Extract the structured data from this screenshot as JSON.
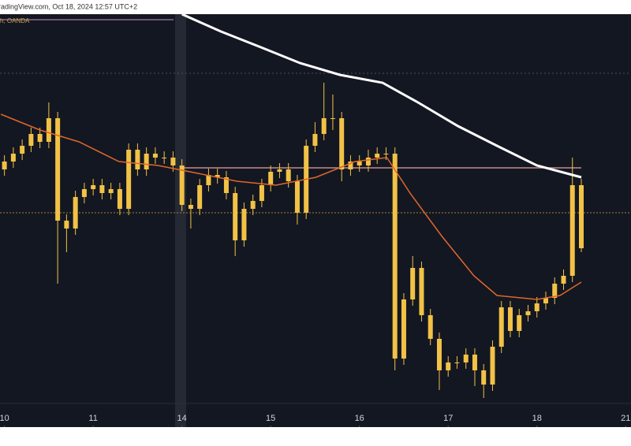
{
  "chart_data": {
    "type": "candlestick",
    "header": "radingView.com, Oct 18, 2024 12:57 UTC+2",
    "symbol": "h, OANDA",
    "xlim": [
      -0.05,
      7.06
    ],
    "ylim": [
      0,
      522
    ],
    "xticks": [
      {
        "value": 0,
        "label": "10"
      },
      {
        "value": 1,
        "label": "11"
      },
      {
        "value": 2,
        "label": "14"
      },
      {
        "value": 3,
        "label": "15"
      },
      {
        "value": 4,
        "label": "16"
      },
      {
        "value": 5,
        "label": "17"
      },
      {
        "value": 6,
        "label": "18"
      },
      {
        "value": 7,
        "label": "21"
      }
    ],
    "candle_color": "#f2c246",
    "x": [
      0,
      0.1,
      0.2,
      0.3,
      0.4,
      0.5,
      0.6,
      0.7,
      0.8,
      0.9,
      1,
      1.1,
      1.2,
      1.3,
      1.4,
      1.5,
      1.6,
      1.7,
      1.8,
      1.9,
      2,
      2.1,
      2.2,
      2.3,
      2.4,
      2.5,
      2.6,
      2.7,
      2.8,
      2.9,
      3,
      3.1,
      3.2,
      3.3,
      3.4,
      3.5,
      3.6,
      3.7,
      3.8,
      3.9,
      4,
      4.1,
      4.2,
      4.3,
      4.4,
      4.5,
      4.6,
      4.7,
      4.8,
      4.9,
      5,
      5.1,
      5.2,
      5.3,
      5.4,
      5.5,
      5.6,
      5.7,
      5.8,
      5.9,
      6,
      6.1,
      6.2,
      6.3,
      6.4,
      6.5
    ],
    "open": [
      325,
      335,
      345,
      355,
      370,
      360,
      390,
      260,
      250,
      290,
      300,
      305,
      295,
      300,
      275,
      350,
      325,
      345,
      340,
      340,
      330,
      280,
      275,
      305,
      318,
      315,
      295,
      235,
      275,
      285,
      305,
      322,
      325,
      310,
      270,
      355,
      370,
      390,
      390,
      325,
      335,
      330,
      340,
      345,
      345,
      85,
      160,
      200,
      140,
      110,
      70,
      80,
      80,
      90,
      70,
      52,
      100,
      150,
      120,
      140,
      145,
      155,
      162,
      180,
      190,
      305
    ],
    "high": [
      343,
      353,
      363,
      378,
      378,
      410,
      398,
      268,
      298,
      308,
      313,
      313,
      308,
      308,
      358,
      358,
      353,
      353,
      348,
      348,
      338,
      288,
      313,
      326,
      326,
      323,
      303,
      283,
      293,
      313,
      330,
      333,
      333,
      318,
      363,
      385,
      435,
      420,
      398,
      343,
      343,
      350,
      353,
      353,
      353,
      168,
      215,
      208,
      148,
      118,
      88,
      88,
      98,
      98,
      78,
      108,
      158,
      158,
      148,
      153,
      163,
      170,
      188,
      198,
      340,
      313
    ],
    "low": [
      317,
      327,
      337,
      347,
      352,
      352,
      180,
      220,
      242,
      282,
      292,
      287,
      287,
      267,
      267,
      317,
      317,
      332,
      332,
      322,
      272,
      250,
      267,
      297,
      307,
      287,
      215,
      227,
      267,
      277,
      297,
      314,
      302,
      255,
      262,
      347,
      362,
      375,
      310,
      317,
      322,
      322,
      332,
      337,
      70,
      77,
      152,
      132,
      102,
      45,
      62,
      72,
      72,
      50,
      35,
      44,
      92,
      112,
      112,
      132,
      137,
      147,
      154,
      172,
      182,
      220
    ],
    "close": [
      335,
      345,
      355,
      370,
      360,
      390,
      260,
      250,
      290,
      300,
      305,
      295,
      300,
      275,
      350,
      325,
      345,
      340,
      340,
      330,
      280,
      275,
      305,
      318,
      315,
      295,
      235,
      275,
      285,
      305,
      322,
      325,
      310,
      270,
      355,
      370,
      390,
      390,
      325,
      335,
      330,
      340,
      345,
      345,
      85,
      160,
      200,
      140,
      110,
      70,
      80,
      80,
      90,
      70,
      52,
      100,
      150,
      120,
      140,
      145,
      155,
      162,
      180,
      190,
      305,
      225
    ],
    "lines": [
      {
        "color": "#ffffff",
        "x": [
          2.0,
          2.44,
          2.89,
          3.33,
          3.78,
          4.26,
          4.66,
          5.11,
          5.55,
          6.0,
          6.5
        ],
        "values": [
          522,
          500,
          480,
          460,
          445,
          435,
          410,
          380,
          355,
          330,
          315
        ]
      },
      {
        "color": "#e0672a",
        "x": [
          -0.04,
          0.4,
          0.84,
          1.29,
          1.73,
          2.18,
          2.62,
          3.06,
          3.51,
          3.95,
          4.31,
          4.57,
          4.93,
          5.29,
          5.55,
          6.0,
          6.26,
          6.5
        ],
        "values": [
          395,
          375,
          360,
          335,
          330,
          320,
          310,
          305,
          315,
          335,
          340,
          295,
          240,
          190,
          165,
          160,
          165,
          182
        ]
      }
    ]
  }
}
